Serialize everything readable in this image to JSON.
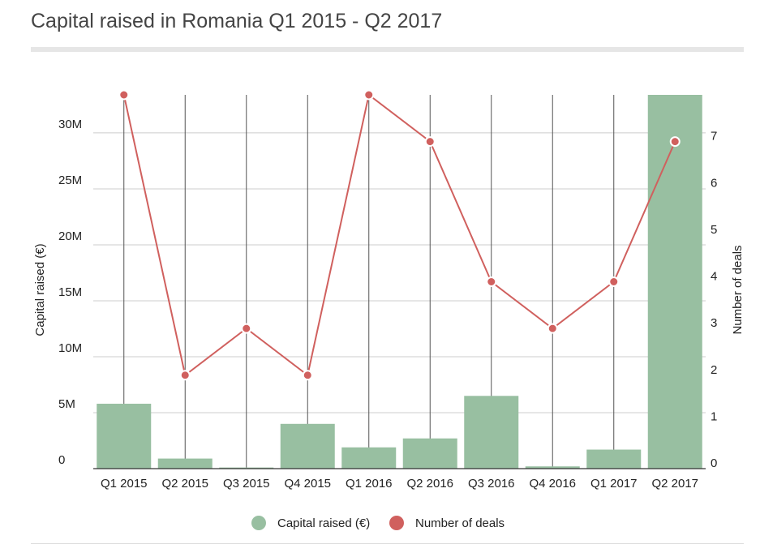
{
  "page": {
    "title": "Capital raised in Romania Q1 2015 - Q2 2017"
  },
  "chart_data": {
    "type": "bar",
    "categories": [
      "Q1 2015",
      "Q2 2015",
      "Q3 2015",
      "Q4 2015",
      "Q1 2016",
      "Q2 2016",
      "Q3 2016",
      "Q4 2016",
      "Q1 2017",
      "Q2 2017"
    ],
    "series": [
      {
        "name": "Capital raised (€)",
        "type": "bar",
        "axis": "left",
        "color": "#98bfa1",
        "values": [
          5800000,
          900000,
          100000,
          4000000,
          1900000,
          2700000,
          6500000,
          200000,
          1700000,
          33400000
        ]
      },
      {
        "name": "Number of deals",
        "type": "line",
        "axis": "right",
        "color": "#d0605e",
        "values": [
          8,
          2,
          3,
          2,
          8,
          7,
          4,
          3,
          4,
          7
        ]
      }
    ],
    "ylabel_left": "Capital raised (€)",
    "ylabel_right": "Number of deals",
    "y_left_ticks": [
      {
        "value": 0,
        "label": "0"
      },
      {
        "value": 5000000,
        "label": "5M"
      },
      {
        "value": 10000000,
        "label": "10M"
      },
      {
        "value": 15000000,
        "label": "15M"
      },
      {
        "value": 20000000,
        "label": "20M"
      },
      {
        "value": 25000000,
        "label": "25M"
      },
      {
        "value": 30000000,
        "label": "30M"
      }
    ],
    "y_right_ticks": [
      {
        "value": 0,
        "label": "0"
      },
      {
        "value": 1,
        "label": "1"
      },
      {
        "value": 2,
        "label": "2"
      },
      {
        "value": 3,
        "label": "3"
      },
      {
        "value": 4,
        "label": "4"
      },
      {
        "value": 5,
        "label": "5"
      },
      {
        "value": 6,
        "label": "6"
      },
      {
        "value": 7,
        "label": "7"
      }
    ],
    "ylim_left": [
      0,
      33400000
    ],
    "ylim_right": [
      0,
      8
    ],
    "grid": true,
    "legend_position": "bottom"
  }
}
